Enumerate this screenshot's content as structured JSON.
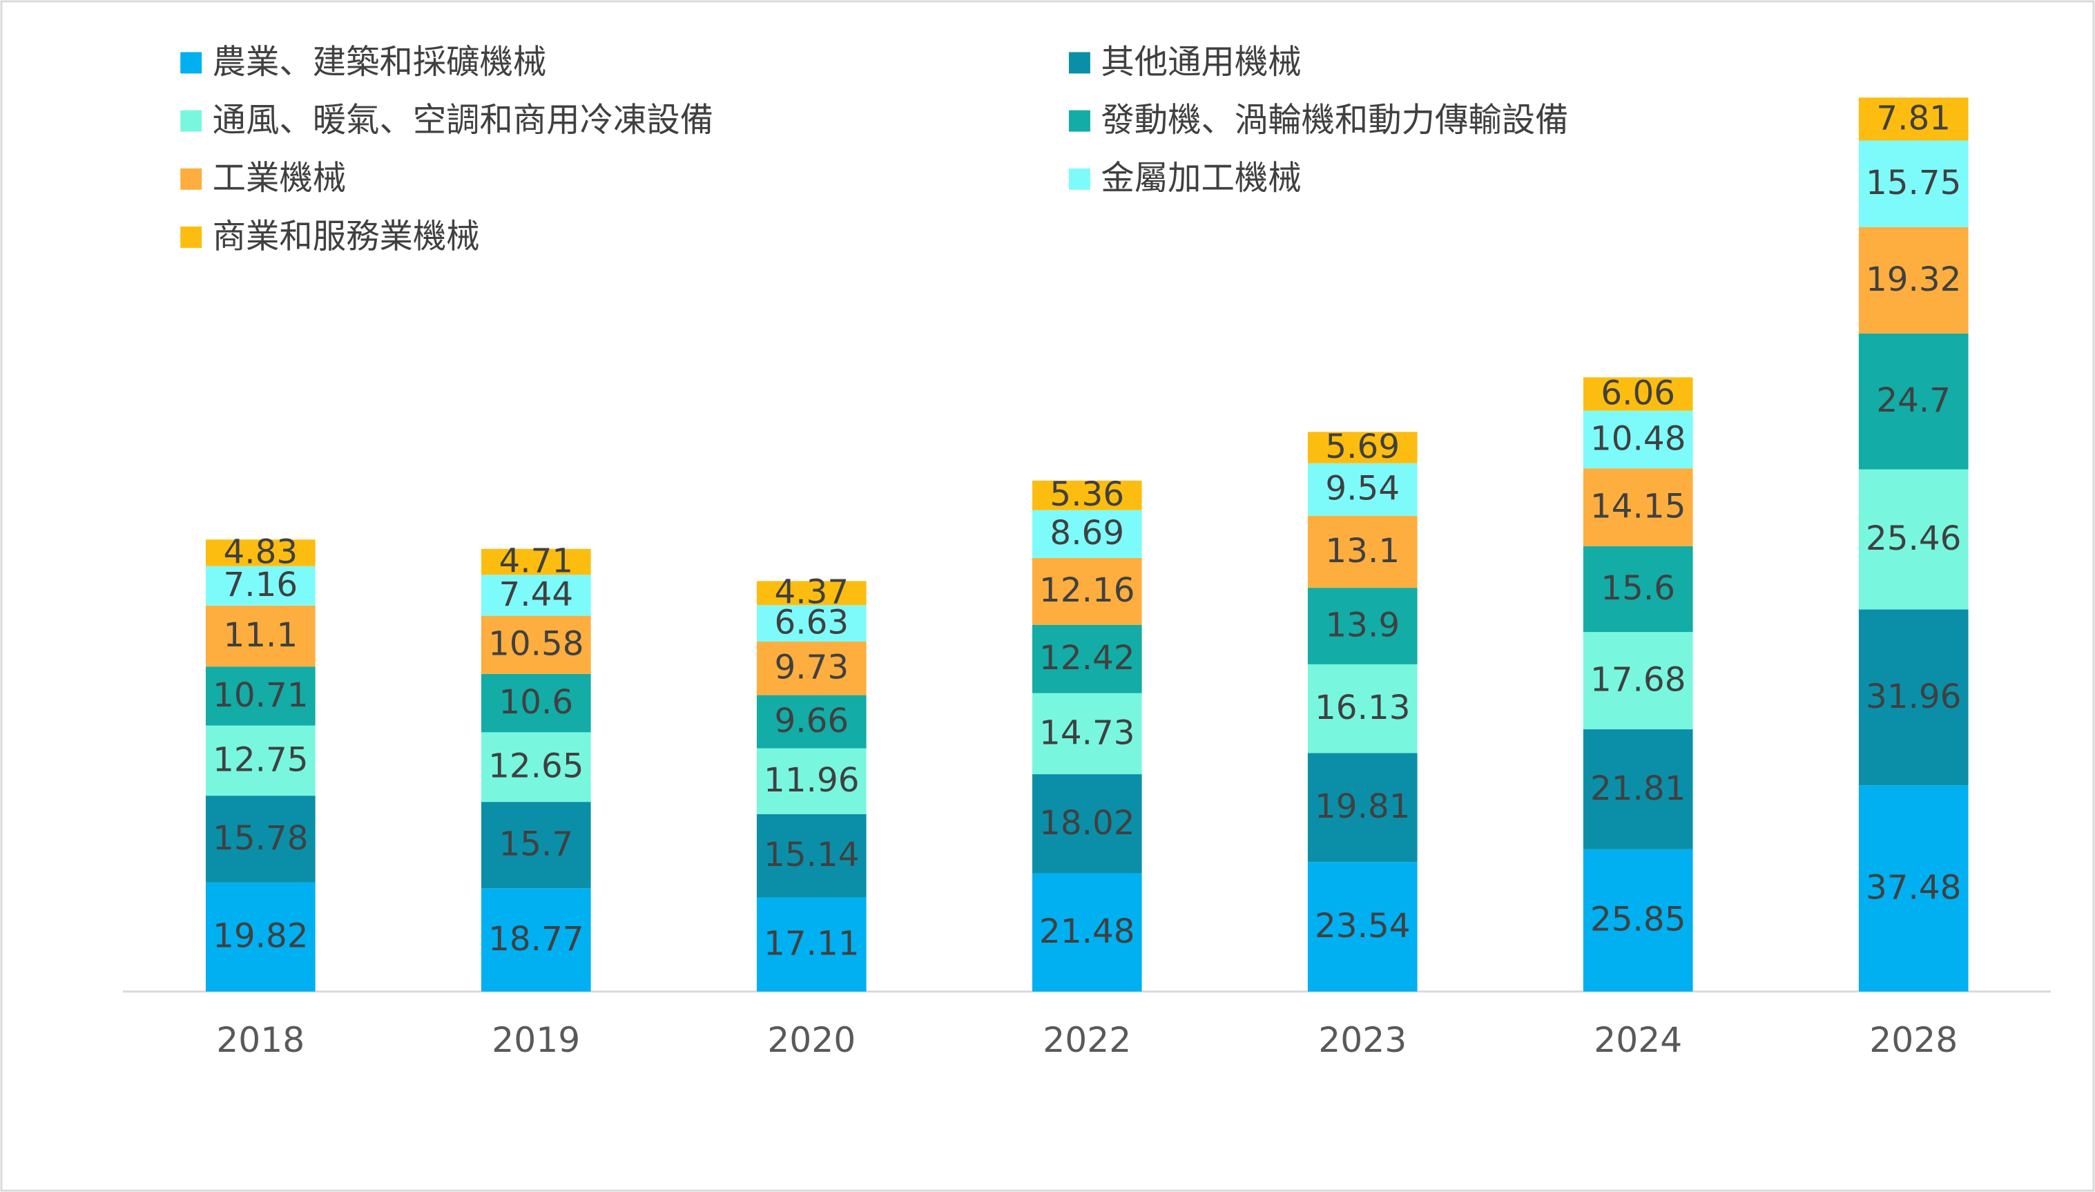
{
  "chart_data": {
    "type": "stacked_bar",
    "categories": [
      "2018",
      "2019",
      "2020",
      "2022",
      "2023",
      "2024",
      "2028"
    ],
    "series": [
      {
        "name": "農業、建築和採礦機械",
        "color": "#00b0f0",
        "values": [
          19.82,
          18.77,
          17.11,
          21.48,
          23.54,
          25.85,
          37.48
        ]
      },
      {
        "name": "其他通用機械",
        "color": "#0b8fa8",
        "values": [
          15.78,
          15.7,
          15.14,
          18.02,
          19.81,
          21.81,
          31.96
        ]
      },
      {
        "name": "通風、暖氣、空調和商用冷凍設備",
        "color": "#79f7de",
        "values": [
          12.75,
          12.65,
          11.96,
          14.73,
          16.13,
          17.68,
          25.46
        ]
      },
      {
        "name": "發動機、渦輪機和動力傳輸設備",
        "color": "#13aca6",
        "values": [
          10.71,
          10.6,
          9.66,
          12.42,
          13.9,
          15.6,
          24.7
        ]
      },
      {
        "name": "工業機械",
        "color": "#fdae3f",
        "values": [
          11.1,
          10.58,
          9.73,
          12.16,
          13.1,
          14.15,
          19.32
        ]
      },
      {
        "name": "金屬加工機械",
        "color": "#7dfbfb",
        "values": [
          7.16,
          7.44,
          6.63,
          8.69,
          9.54,
          10.48,
          15.75
        ]
      },
      {
        "name": "商業和服務業機械",
        "color": "#fdbd10",
        "values": [
          4.83,
          4.71,
          4.37,
          5.36,
          5.69,
          6.06,
          7.81
        ]
      }
    ]
  }
}
